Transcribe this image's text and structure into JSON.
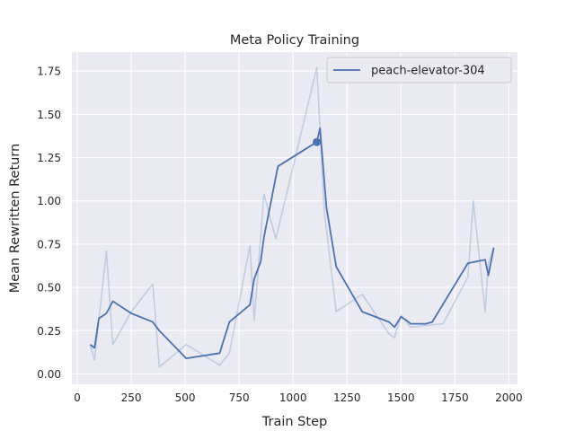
{
  "chart_data": {
    "type": "line",
    "title": "Meta Policy Training",
    "xlabel": "Train Step",
    "ylabel": "Mean Rewritten Return",
    "xlim": [
      -25,
      2040
    ],
    "ylim": [
      -0.06,
      1.86
    ],
    "xticks": [
      0,
      250,
      500,
      750,
      1000,
      1250,
      1500,
      1750,
      2000
    ],
    "yticks": [
      0.0,
      0.25,
      0.5,
      0.75,
      1.0,
      1.25,
      1.5,
      1.75
    ],
    "xtick_labels": [
      "0",
      "250",
      "500",
      "750",
      "1000",
      "1250",
      "1500",
      "1750",
      "2000"
    ],
    "ytick_labels": [
      "0.00",
      "0.25",
      "0.50",
      "0.75",
      "1.00",
      "1.25",
      "1.50",
      "1.75"
    ],
    "grid": true,
    "legend_position": "top-right",
    "colors": {
      "series": "#4c72b0",
      "background": "#eaeaf2",
      "grid": "#ffffff"
    },
    "series": [
      {
        "name": "peach-elevator-304",
        "role": "raw",
        "x": [
          60,
          80,
          100,
          135,
          165,
          250,
          350,
          380,
          505,
          660,
          705,
          800,
          820,
          865,
          920,
          1110,
          1145,
          1200,
          1320,
          1445,
          1470,
          1500,
          1545,
          1615,
          1695,
          1810,
          1835,
          1890,
          1905,
          1930
        ],
        "y": [
          0.17,
          0.08,
          0.31,
          0.71,
          0.17,
          0.36,
          0.52,
          0.04,
          0.17,
          0.05,
          0.12,
          0.74,
          0.31,
          1.04,
          0.78,
          1.77,
          0.94,
          0.36,
          0.46,
          0.23,
          0.21,
          0.34,
          0.27,
          0.28,
          0.29,
          0.56,
          1.0,
          0.36,
          0.64,
          0.73
        ]
      },
      {
        "name": "peach-elevator-304",
        "role": "smoothed",
        "x": [
          60,
          80,
          100,
          135,
          165,
          250,
          350,
          380,
          505,
          660,
          705,
          800,
          820,
          850,
          865,
          930,
          1110,
          1125,
          1155,
          1200,
          1320,
          1445,
          1470,
          1500,
          1525,
          1545,
          1615,
          1645,
          1810,
          1890,
          1905,
          1930
        ],
        "y": [
          0.17,
          0.15,
          0.32,
          0.35,
          0.42,
          0.35,
          0.3,
          0.25,
          0.09,
          0.12,
          0.3,
          0.4,
          0.55,
          0.65,
          0.79,
          1.2,
          1.34,
          1.42,
          0.96,
          0.62,
          0.36,
          0.3,
          0.27,
          0.33,
          0.31,
          0.29,
          0.29,
          0.3,
          0.64,
          0.66,
          0.57,
          0.73
        ]
      }
    ],
    "marker": {
      "x": 1110,
      "y": 1.34
    }
  }
}
